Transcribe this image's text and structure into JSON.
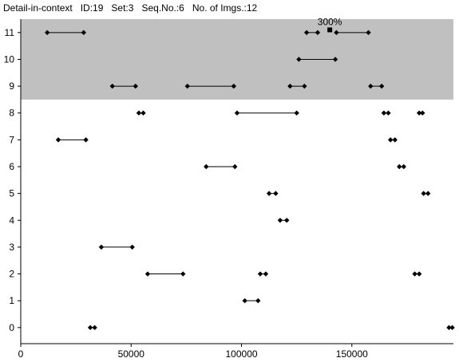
{
  "header": {
    "title": "Detail-in-context",
    "id": "ID:19",
    "set": "Set:3",
    "seq": "Seq.No.:6",
    "imgs": "No. of Imgs.:12"
  },
  "chart_data": {
    "type": "interval",
    "xlim": [
      0,
      196000
    ],
    "ylim": [
      -0.6,
      11.5
    ],
    "x_ticks": [
      0,
      50000,
      100000,
      150000
    ],
    "y_ticks": [
      0,
      1,
      2,
      3,
      4,
      5,
      6,
      7,
      8,
      9,
      10,
      11
    ],
    "highlight_band": {
      "y_from": 8.5,
      "y_to": 11.5,
      "color": "#c0c0c0"
    },
    "annotation": {
      "text": "300%",
      "x": 140000,
      "y": 11.1
    },
    "rows": [
      {
        "y": 0,
        "segments": [
          [
            31500,
            33500
          ],
          [
            194000,
            195500
          ]
        ]
      },
      {
        "y": 1,
        "segments": [
          [
            101500,
            107500
          ]
        ]
      },
      {
        "y": 2,
        "segments": [
          [
            57500,
            73500
          ],
          [
            108500,
            111000
          ],
          [
            178500,
            180500
          ]
        ]
      },
      {
        "y": 3,
        "segments": [
          [
            36500,
            50500
          ]
        ]
      },
      {
        "y": 4,
        "segments": [
          [
            117500,
            120500
          ]
        ]
      },
      {
        "y": 5,
        "segments": [
          [
            112500,
            115500
          ],
          [
            182500,
            184500
          ]
        ]
      },
      {
        "y": 6,
        "segments": [
          [
            84000,
            97000
          ],
          [
            171500,
            173500
          ]
        ]
      },
      {
        "y": 7,
        "segments": [
          [
            17000,
            29500
          ],
          [
            167500,
            169500
          ]
        ]
      },
      {
        "y": 8,
        "segments": [
          [
            53500,
            55500
          ],
          [
            98000,
            125000
          ],
          [
            164500,
            166500
          ],
          [
            180500,
            182000
          ]
        ]
      },
      {
        "y": 9,
        "segments": [
          [
            41500,
            52000
          ],
          [
            75500,
            96500
          ],
          [
            122000,
            128500
          ],
          [
            158500,
            163500
          ]
        ]
      },
      {
        "y": 10,
        "segments": [
          [
            126000,
            142500
          ]
        ]
      },
      {
        "y": 11,
        "segments": [
          [
            12000,
            28500
          ],
          [
            129500,
            134500
          ],
          [
            143000,
            157500
          ]
        ]
      }
    ]
  }
}
